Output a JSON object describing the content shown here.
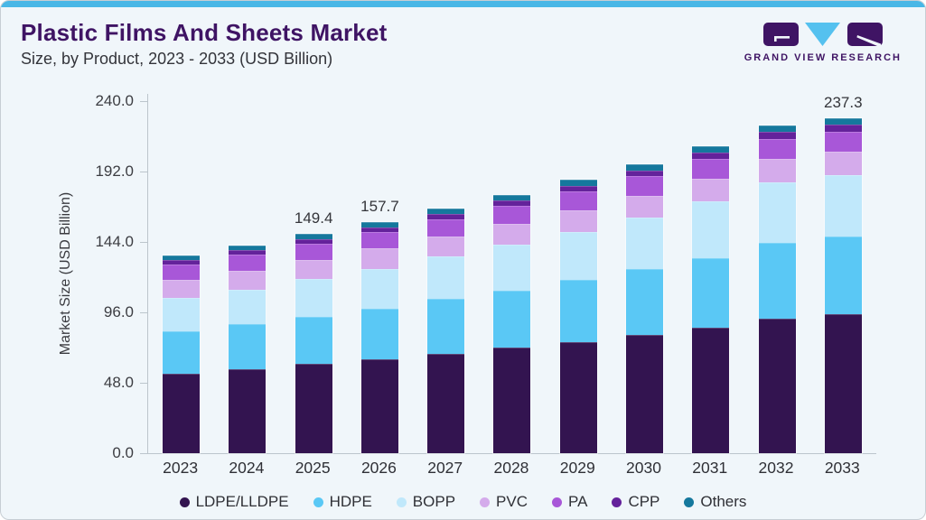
{
  "header": {
    "title": "Plastic Films And Sheets Market",
    "subtitle": "Size, by Product, 2023 - 2033 (USD Billion)"
  },
  "logo": {
    "wordmark": "GRAND VIEW RESEARCH",
    "brand_purple": "#3f1464",
    "brand_blue": "#55c1ef"
  },
  "colors": {
    "card_background": "#f0f6fa",
    "top_accent": "#49b7e6",
    "axis": "#bcc5cc",
    "text_dark": "#33343a",
    "title_purple": "#3f1464"
  },
  "chart_data": {
    "type": "bar",
    "stacked": true,
    "title": "Plastic Films And Sheets Market Size, by Product, 2023 - 2033 (USD Billion)",
    "xlabel": "",
    "ylabel": "Market Size (USD Billion)",
    "ylim": [
      0,
      240
    ],
    "grid": false,
    "legend_position": "bottom",
    "yticks": [
      {
        "value": 0,
        "label": "0.0"
      },
      {
        "value": 48,
        "label": "48.0"
      },
      {
        "value": 96,
        "label": "96.0"
      },
      {
        "value": 144,
        "label": "144.0"
      },
      {
        "value": 192,
        "label": "192.0"
      },
      {
        "value": 240,
        "label": "240.0"
      }
    ],
    "categories": [
      "2023",
      "2024",
      "2025",
      "2026",
      "2027",
      "2028",
      "2029",
      "2030",
      "2031",
      "2032",
      "2033"
    ],
    "series": [
      {
        "name": "LDPE/LLDPE",
        "color": "#331450",
        "values": [
          54.1,
          57.4,
          60.8,
          64.2,
          67.9,
          71.8,
          75.9,
          80.4,
          85.7,
          91.5,
          98.2
        ]
      },
      {
        "name": "HDPE",
        "color": "#5ac8f5",
        "values": [
          29.3,
          30.6,
          32.4,
          34.4,
          37.2,
          38.9,
          42.2,
          45.0,
          47.5,
          51.9,
          55.0
        ]
      },
      {
        "name": "BOPP",
        "color": "#c0e8fb",
        "values": [
          22.4,
          23.6,
          25.4,
          27.2,
          28.9,
          31.2,
          32.9,
          35.1,
          38.3,
          41.1,
          43.9
        ]
      },
      {
        "name": "PVC",
        "color": "#d4abeb",
        "values": [
          12.3,
          12.7,
          13.2,
          13.7,
          13.9,
          14.2,
          14.7,
          15.1,
          15.6,
          16.1,
          16.7
        ]
      },
      {
        "name": "PA",
        "color": "#a857d8",
        "values": [
          10.6,
          11.0,
          10.9,
          11.1,
          11.8,
          12.4,
          12.6,
          13.1,
          13.6,
          13.8,
          14.0
        ]
      },
      {
        "name": "CPP",
        "color": "#64229b",
        "values": [
          3.0,
          3.2,
          3.3,
          3.4,
          3.6,
          3.8,
          3.9,
          4.1,
          4.3,
          4.5,
          4.8
        ]
      },
      {
        "name": "Others",
        "color": "#15789d",
        "values": [
          3.1,
          3.3,
          3.4,
          3.7,
          3.8,
          4.0,
          4.1,
          4.3,
          4.4,
          4.6,
          4.7
        ]
      }
    ],
    "value_labels": {
      "2025": "149.4",
      "2026": "157.7",
      "2033": "237.3"
    }
  }
}
